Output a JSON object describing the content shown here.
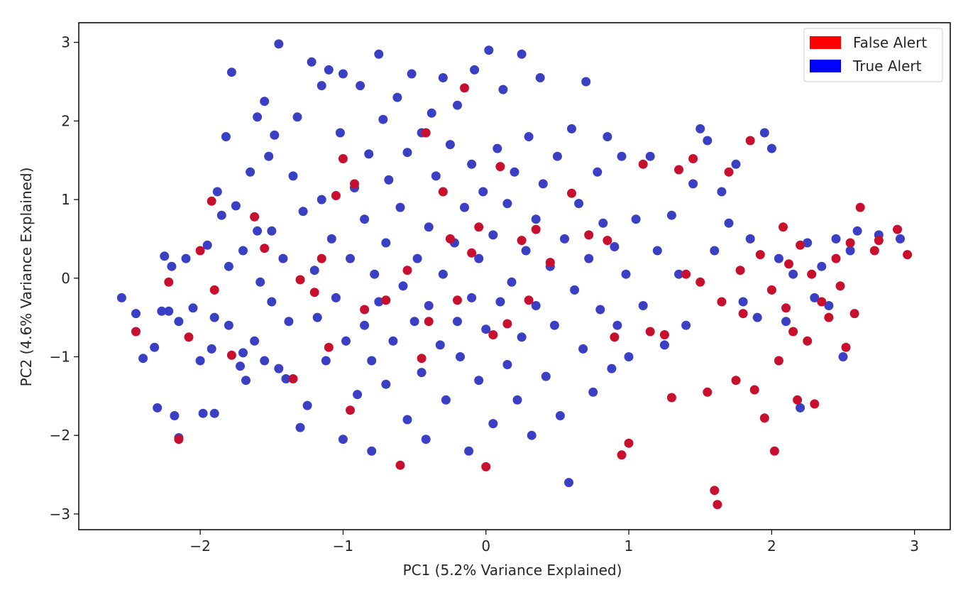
{
  "chart_data": {
    "type": "scatter",
    "title": "",
    "xlabel": "PC1 (5.2% Variance Explained)",
    "ylabel": "PC2 (4.6% Variance Explained)",
    "xlim": [
      -2.85,
      3.25
    ],
    "ylim": [
      -3.2,
      3.25
    ],
    "xticks": [
      -2,
      -1,
      0,
      1,
      2,
      3
    ],
    "xtick_labels": [
      "−2",
      "−1",
      "0",
      "1",
      "2",
      "3"
    ],
    "yticks": [
      -3,
      -2,
      -1,
      0,
      1,
      2,
      3
    ],
    "ytick_labels": [
      "−3",
      "−2",
      "−1",
      "0",
      "1",
      "2",
      "3"
    ],
    "grid": false,
    "legend_position": "top-right",
    "series": [
      {
        "name": "True Alert",
        "legend_color": "#0000ff",
        "marker_color": "#3a3fc4",
        "points": [
          [
            -2.55,
            -0.25
          ],
          [
            -2.45,
            -0.45
          ],
          [
            -2.4,
            -1.02
          ],
          [
            -2.32,
            -0.88
          ],
          [
            -2.3,
            -1.65
          ],
          [
            -2.27,
            -0.42
          ],
          [
            -2.25,
            0.28
          ],
          [
            -2.22,
            -0.42
          ],
          [
            -2.2,
            0.15
          ],
          [
            -2.18,
            -1.75
          ],
          [
            -2.15,
            -2.03
          ],
          [
            -2.15,
            -0.55
          ],
          [
            -2.1,
            0.25
          ],
          [
            -2.05,
            -0.38
          ],
          [
            -2.0,
            -1.05
          ],
          [
            -1.98,
            -1.72
          ],
          [
            -1.95,
            0.42
          ],
          [
            -1.92,
            -0.9
          ],
          [
            -1.9,
            -0.5
          ],
          [
            -1.9,
            -1.72
          ],
          [
            -1.88,
            1.1
          ],
          [
            -1.85,
            0.8
          ],
          [
            -1.82,
            1.8
          ],
          [
            -1.8,
            -0.6
          ],
          [
            -1.8,
            0.15
          ],
          [
            -1.78,
            2.62
          ],
          [
            -1.75,
            0.92
          ],
          [
            -1.72,
            -1.12
          ],
          [
            -1.7,
            -0.95
          ],
          [
            -1.7,
            0.35
          ],
          [
            -1.68,
            -1.3
          ],
          [
            -1.65,
            1.35
          ],
          [
            -1.62,
            -0.8
          ],
          [
            -1.6,
            2.05
          ],
          [
            -1.6,
            0.6
          ],
          [
            -1.58,
            -0.05
          ],
          [
            -1.55,
            2.25
          ],
          [
            -1.55,
            -1.05
          ],
          [
            -1.52,
            1.55
          ],
          [
            -1.5,
            0.6
          ],
          [
            -1.5,
            -0.3
          ],
          [
            -1.48,
            1.82
          ],
          [
            -1.45,
            -1.15
          ],
          [
            -1.45,
            2.98
          ],
          [
            -1.42,
            0.25
          ],
          [
            -1.4,
            -1.28
          ],
          [
            -1.38,
            -0.55
          ],
          [
            -1.35,
            1.3
          ],
          [
            -1.32,
            2.05
          ],
          [
            -1.3,
            -1.9
          ],
          [
            -1.28,
            0.85
          ],
          [
            -1.25,
            -1.62
          ],
          [
            -1.22,
            2.75
          ],
          [
            -1.2,
            0.1
          ],
          [
            -1.18,
            -0.5
          ],
          [
            -1.15,
            2.45
          ],
          [
            -1.15,
            1.0
          ],
          [
            -1.12,
            -1.05
          ],
          [
            -1.1,
            2.65
          ],
          [
            -1.08,
            0.5
          ],
          [
            -1.05,
            -0.25
          ],
          [
            -1.02,
            1.85
          ],
          [
            -1.0,
            2.6
          ],
          [
            -1.0,
            -2.05
          ],
          [
            -0.98,
            -0.8
          ],
          [
            -0.95,
            0.25
          ],
          [
            -0.92,
            1.15
          ],
          [
            -0.9,
            -1.48
          ],
          [
            -0.88,
            2.45
          ],
          [
            -0.85,
            -0.6
          ],
          [
            -0.85,
            0.75
          ],
          [
            -0.82,
            1.58
          ],
          [
            -0.8,
            -2.2
          ],
          [
            -0.8,
            -1.05
          ],
          [
            -0.78,
            0.05
          ],
          [
            -0.75,
            2.85
          ],
          [
            -0.75,
            -0.3
          ],
          [
            -0.72,
            2.02
          ],
          [
            -0.7,
            0.45
          ],
          [
            -0.7,
            -1.35
          ],
          [
            -0.68,
            1.25
          ],
          [
            -0.65,
            -0.8
          ],
          [
            -0.62,
            2.3
          ],
          [
            -0.6,
            0.9
          ],
          [
            -0.58,
            -0.1
          ],
          [
            -0.55,
            -1.8
          ],
          [
            -0.55,
            1.6
          ],
          [
            -0.52,
            2.6
          ],
          [
            -0.5,
            -0.55
          ],
          [
            -0.48,
            0.25
          ],
          [
            -0.45,
            1.85
          ],
          [
            -0.45,
            -1.2
          ],
          [
            -0.42,
            -2.05
          ],
          [
            -0.4,
            0.65
          ],
          [
            -0.4,
            -0.35
          ],
          [
            -0.38,
            2.1
          ],
          [
            -0.35,
            1.3
          ],
          [
            -0.32,
            -0.85
          ],
          [
            -0.3,
            0.05
          ],
          [
            -0.3,
            2.55
          ],
          [
            -0.28,
            -1.55
          ],
          [
            -0.25,
            1.7
          ],
          [
            -0.22,
            0.45
          ],
          [
            -0.2,
            -0.55
          ],
          [
            -0.2,
            2.2
          ],
          [
            -0.18,
            -1.0
          ],
          [
            -0.15,
            0.9
          ],
          [
            -0.12,
            -2.2
          ],
          [
            -0.1,
            1.45
          ],
          [
            -0.1,
            -0.25
          ],
          [
            -0.08,
            2.65
          ],
          [
            -0.05,
            0.25
          ],
          [
            -0.05,
            -1.3
          ],
          [
            -0.02,
            1.1
          ],
          [
            0.0,
            -0.65
          ],
          [
            0.02,
            2.9
          ],
          [
            0.05,
            -1.85
          ],
          [
            0.05,
            0.55
          ],
          [
            0.08,
            1.65
          ],
          [
            0.1,
            -0.3
          ],
          [
            0.12,
            2.4
          ],
          [
            0.15,
            -1.1
          ],
          [
            0.15,
            0.95
          ],
          [
            0.18,
            -0.05
          ],
          [
            0.2,
            1.35
          ],
          [
            0.22,
            -1.55
          ],
          [
            0.25,
            2.85
          ],
          [
            0.25,
            -0.75
          ],
          [
            0.28,
            0.35
          ],
          [
            0.3,
            1.8
          ],
          [
            0.32,
            -2.0
          ],
          [
            0.35,
            -0.35
          ],
          [
            0.35,
            0.75
          ],
          [
            0.38,
            2.55
          ],
          [
            0.4,
            1.2
          ],
          [
            0.42,
            -1.25
          ],
          [
            0.45,
            0.15
          ],
          [
            0.48,
            -0.6
          ],
          [
            0.5,
            1.55
          ],
          [
            0.52,
            -1.75
          ],
          [
            0.55,
            0.5
          ],
          [
            0.58,
            -2.6
          ],
          [
            0.6,
            1.9
          ],
          [
            0.62,
            -0.15
          ],
          [
            0.65,
            0.95
          ],
          [
            0.68,
            -0.9
          ],
          [
            0.7,
            2.5
          ],
          [
            0.72,
            0.25
          ],
          [
            0.75,
            -1.45
          ],
          [
            0.78,
            1.35
          ],
          [
            0.8,
            -0.4
          ],
          [
            0.82,
            0.7
          ],
          [
            0.85,
            1.8
          ],
          [
            0.88,
            -1.15
          ],
          [
            0.9,
            0.4
          ],
          [
            0.92,
            -0.6
          ],
          [
            0.95,
            1.55
          ],
          [
            0.98,
            0.05
          ],
          [
            1.0,
            -1.0
          ],
          [
            1.05,
            0.75
          ],
          [
            1.1,
            -0.35
          ],
          [
            1.15,
            1.55
          ],
          [
            1.2,
            0.35
          ],
          [
            1.25,
            -0.85
          ],
          [
            1.3,
            0.8
          ],
          [
            1.35,
            0.05
          ],
          [
            1.4,
            -0.6
          ],
          [
            1.45,
            1.2
          ],
          [
            1.5,
            1.9
          ],
          [
            1.55,
            1.75
          ],
          [
            1.6,
            0.35
          ],
          [
            1.65,
            1.1
          ],
          [
            1.7,
            0.7
          ],
          [
            1.75,
            1.45
          ],
          [
            1.8,
            -0.3
          ],
          [
            1.85,
            0.5
          ],
          [
            1.9,
            -0.5
          ],
          [
            1.95,
            1.85
          ],
          [
            2.0,
            1.65
          ],
          [
            2.05,
            0.25
          ],
          [
            2.1,
            -0.55
          ],
          [
            2.15,
            0.05
          ],
          [
            2.2,
            -1.65
          ],
          [
            2.25,
            0.45
          ],
          [
            2.3,
            -0.25
          ],
          [
            2.35,
            0.15
          ],
          [
            2.4,
            -0.35
          ],
          [
            2.45,
            0.5
          ],
          [
            2.5,
            -1.0
          ],
          [
            2.55,
            0.35
          ],
          [
            2.6,
            0.6
          ],
          [
            2.75,
            0.55
          ],
          [
            2.9,
            0.5
          ]
        ]
      },
      {
        "name": "False Alert",
        "legend_color": "#ff0000",
        "marker_color": "#c8102e",
        "points": [
          [
            -2.45,
            -0.68
          ],
          [
            -2.22,
            -0.05
          ],
          [
            -2.15,
            -2.05
          ],
          [
            -2.08,
            -0.75
          ],
          [
            -2.0,
            0.35
          ],
          [
            -1.92,
            0.98
          ],
          [
            -1.9,
            -0.15
          ],
          [
            -1.78,
            -0.98
          ],
          [
            -1.62,
            0.78
          ],
          [
            -1.55,
            0.38
          ],
          [
            -1.35,
            -1.28
          ],
          [
            -1.3,
            -0.02
          ],
          [
            -1.2,
            -0.18
          ],
          [
            -1.15,
            0.25
          ],
          [
            -1.1,
            -0.88
          ],
          [
            -1.05,
            1.05
          ],
          [
            -1.0,
            1.52
          ],
          [
            -0.95,
            -1.68
          ],
          [
            -0.92,
            1.2
          ],
          [
            -0.85,
            -0.4
          ],
          [
            -0.7,
            -0.28
          ],
          [
            -0.6,
            -2.38
          ],
          [
            -0.55,
            0.1
          ],
          [
            -0.45,
            -1.02
          ],
          [
            -0.42,
            1.85
          ],
          [
            -0.4,
            -0.55
          ],
          [
            -0.3,
            1.1
          ],
          [
            -0.25,
            0.5
          ],
          [
            -0.2,
            -0.28
          ],
          [
            -0.15,
            2.42
          ],
          [
            -0.1,
            0.32
          ],
          [
            -0.05,
            0.65
          ],
          [
            0.0,
            -2.4
          ],
          [
            0.05,
            -0.72
          ],
          [
            0.1,
            1.42
          ],
          [
            0.15,
            -0.58
          ],
          [
            0.25,
            0.48
          ],
          [
            0.3,
            -0.28
          ],
          [
            0.35,
            0.62
          ],
          [
            0.45,
            0.2
          ],
          [
            0.6,
            1.08
          ],
          [
            0.72,
            0.55
          ],
          [
            0.85,
            0.48
          ],
          [
            0.9,
            -0.75
          ],
          [
            0.95,
            -2.25
          ],
          [
            1.0,
            -2.1
          ],
          [
            1.1,
            1.45
          ],
          [
            1.15,
            -0.68
          ],
          [
            1.25,
            -0.72
          ],
          [
            1.3,
            -1.52
          ],
          [
            1.35,
            1.38
          ],
          [
            1.4,
            0.05
          ],
          [
            1.45,
            1.52
          ],
          [
            1.5,
            -0.05
          ],
          [
            1.55,
            -1.45
          ],
          [
            1.6,
            -2.7
          ],
          [
            1.62,
            -2.88
          ],
          [
            1.65,
            -0.3
          ],
          [
            1.7,
            1.35
          ],
          [
            1.75,
            -1.3
          ],
          [
            1.78,
            0.1
          ],
          [
            1.8,
            -0.45
          ],
          [
            1.85,
            1.75
          ],
          [
            1.88,
            -1.42
          ],
          [
            1.92,
            0.3
          ],
          [
            1.95,
            -1.78
          ],
          [
            2.0,
            -0.15
          ],
          [
            2.02,
            -2.2
          ],
          [
            2.05,
            -1.05
          ],
          [
            2.08,
            0.65
          ],
          [
            2.1,
            -0.38
          ],
          [
            2.12,
            0.18
          ],
          [
            2.15,
            -0.68
          ],
          [
            2.18,
            -1.55
          ],
          [
            2.2,
            0.42
          ],
          [
            2.25,
            -0.8
          ],
          [
            2.28,
            0.05
          ],
          [
            2.3,
            -1.6
          ],
          [
            2.35,
            -0.3
          ],
          [
            2.4,
            -0.5
          ],
          [
            2.45,
            0.25
          ],
          [
            2.48,
            -0.1
          ],
          [
            2.52,
            -0.88
          ],
          [
            2.55,
            0.45
          ],
          [
            2.58,
            -0.45
          ],
          [
            2.62,
            0.9
          ],
          [
            2.72,
            0.35
          ],
          [
            2.75,
            0.48
          ],
          [
            2.88,
            0.62
          ],
          [
            2.95,
            0.3
          ]
        ]
      }
    ]
  }
}
